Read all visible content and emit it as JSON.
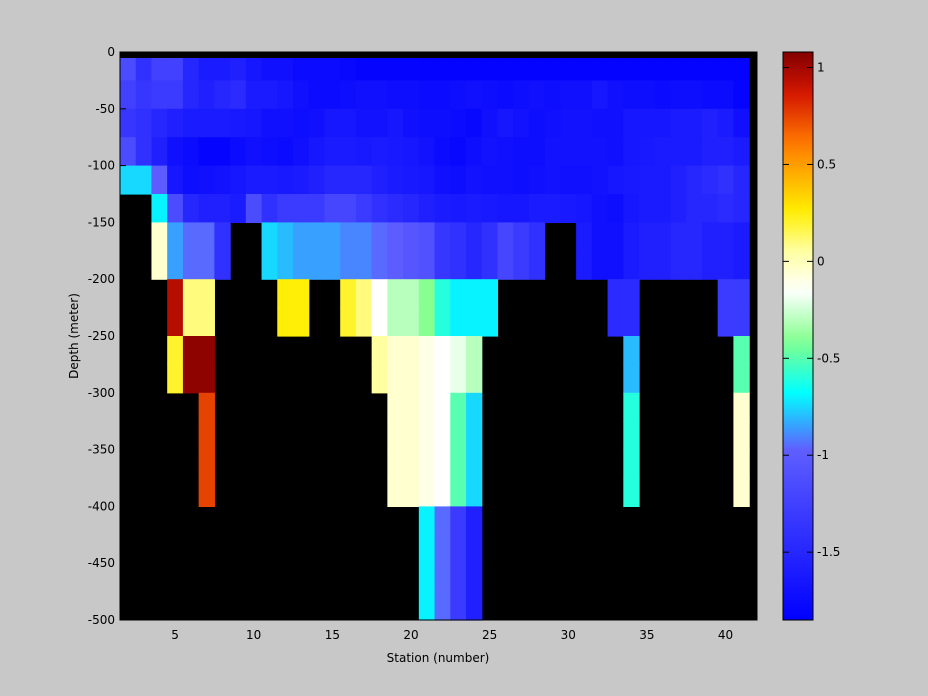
{
  "chart_data": {
    "type": "heatmap",
    "title": "",
    "xlabel": "Station (number)",
    "ylabel": "Depth (meter)",
    "xlim": [
      1.5,
      42
    ],
    "ylim": [
      -500,
      0
    ],
    "xticks": [
      5,
      10,
      15,
      20,
      25,
      30,
      35,
      40
    ],
    "yticks": [
      0,
      -50,
      -100,
      -150,
      -200,
      -250,
      -300,
      -350,
      -400,
      -450,
      -500
    ],
    "x": [
      2,
      3,
      4,
      5,
      6,
      7,
      8,
      9,
      10,
      11,
      12,
      13,
      14,
      15,
      16,
      17,
      18,
      19,
      20,
      21,
      22,
      23,
      24,
      25,
      26,
      27,
      28,
      29,
      30,
      31,
      32,
      33,
      34,
      35,
      36,
      37,
      38,
      39,
      40,
      41
    ],
    "depths": [
      0,
      -25,
      -50,
      -75,
      -100,
      -125,
      -150,
      -175,
      -200,
      -225,
      -250,
      -275,
      -300,
      -325,
      -350,
      -375,
      -400,
      -425,
      -450,
      -475,
      -500
    ],
    "no_data_color": "#000000",
    "colorbar": {
      "min": -1.85,
      "max": 1.08,
      "ticks": [
        1,
        0.5,
        0,
        -0.5,
        -1,
        -1.5
      ],
      "colormap": "jet-with-white-centre"
    },
    "values": [
      [
        -1.15,
        -1.4,
        -1.25,
        -1.25,
        -1.5,
        -1.6,
        -1.6,
        -1.55,
        -1.65,
        -1.7,
        -1.7,
        -1.75,
        -1.75,
        -1.75,
        -1.78,
        -1.8,
        -1.8,
        -1.8,
        -1.8,
        -1.82,
        -1.82,
        -1.82,
        -1.82,
        -1.82,
        -1.82,
        -1.82,
        -1.82,
        -1.82,
        -1.82,
        -1.82,
        -1.82,
        -1.82,
        -1.82,
        -1.82,
        -1.82,
        -1.82,
        -1.82,
        -1.82,
        -1.82,
        -1.82
      ],
      [
        -1.25,
        -1.35,
        -1.3,
        -1.3,
        -1.5,
        -1.55,
        -1.5,
        -1.45,
        -1.6,
        -1.6,
        -1.65,
        -1.7,
        -1.75,
        -1.75,
        -1.72,
        -1.7,
        -1.7,
        -1.72,
        -1.72,
        -1.75,
        -1.75,
        -1.72,
        -1.7,
        -1.72,
        -1.75,
        -1.72,
        -1.7,
        -1.72,
        -1.7,
        -1.7,
        -1.65,
        -1.7,
        -1.72,
        -1.72,
        -1.75,
        -1.72,
        -1.72,
        -1.75,
        -1.75,
        -1.8
      ],
      [
        -1.35,
        -1.4,
        -1.5,
        -1.55,
        -1.6,
        -1.6,
        -1.6,
        -1.62,
        -1.65,
        -1.7,
        -1.7,
        -1.72,
        -1.7,
        -1.65,
        -1.65,
        -1.68,
        -1.68,
        -1.65,
        -1.7,
        -1.72,
        -1.72,
        -1.75,
        -1.78,
        -1.7,
        -1.65,
        -1.68,
        -1.72,
        -1.7,
        -1.68,
        -1.68,
        -1.7,
        -1.7,
        -1.65,
        -1.65,
        -1.65,
        -1.6,
        -1.6,
        -1.55,
        -1.6,
        -1.7
      ],
      [
        -1.15,
        -1.4,
        -1.55,
        -1.7,
        -1.75,
        -1.8,
        -1.8,
        -1.75,
        -1.7,
        -1.72,
        -1.75,
        -1.7,
        -1.65,
        -1.6,
        -1.6,
        -1.62,
        -1.6,
        -1.62,
        -1.65,
        -1.68,
        -1.75,
        -1.78,
        -1.72,
        -1.68,
        -1.7,
        -1.72,
        -1.72,
        -1.68,
        -1.68,
        -1.68,
        -1.68,
        -1.7,
        -1.65,
        -1.62,
        -1.6,
        -1.6,
        -1.6,
        -1.55,
        -1.55,
        -1.6
      ],
      [
        -0.75,
        -0.75,
        -1.0,
        -1.65,
        -1.72,
        -1.7,
        -1.68,
        -1.65,
        -1.6,
        -1.6,
        -1.62,
        -1.6,
        -1.55,
        -1.5,
        -1.5,
        -1.5,
        -1.55,
        -1.6,
        -1.62,
        -1.65,
        -1.7,
        -1.72,
        -1.68,
        -1.7,
        -1.7,
        -1.72,
        -1.7,
        -1.68,
        -1.7,
        -1.7,
        -1.68,
        -1.65,
        -1.62,
        -1.6,
        -1.6,
        -1.55,
        -1.5,
        -1.45,
        -1.4,
        -1.5
      ],
      [
        null,
        null,
        -0.7,
        -1.15,
        -1.5,
        -1.55,
        -1.55,
        -1.6,
        -1.15,
        -1.4,
        -1.3,
        -1.3,
        -1.3,
        -1.2,
        -1.2,
        -1.3,
        -1.4,
        -1.45,
        -1.5,
        -1.55,
        -1.6,
        -1.62,
        -1.6,
        -1.62,
        -1.65,
        -1.65,
        -1.6,
        -1.6,
        -1.62,
        -1.65,
        -1.7,
        -1.72,
        -1.65,
        -1.6,
        -1.6,
        -1.55,
        -1.5,
        -1.5,
        -1.45,
        -1.5
      ],
      [
        null,
        null,
        -0.05,
        -0.85,
        -0.95,
        -0.95,
        -1.4,
        null,
        null,
        -0.75,
        -0.8,
        -0.85,
        -0.85,
        -0.85,
        -0.9,
        -0.9,
        -0.95,
        -1.0,
        -1.05,
        -1.1,
        -1.35,
        -1.4,
        -1.5,
        -1.4,
        -1.2,
        -1.3,
        -1.4,
        null,
        null,
        -1.6,
        -1.7,
        -1.7,
        -1.6,
        -1.55,
        -1.55,
        -1.5,
        -1.5,
        -1.55,
        -1.55,
        -1.6
      ],
      [
        null,
        null,
        -0.05,
        -0.85,
        -0.95,
        -0.95,
        -1.4,
        null,
        null,
        -0.75,
        -0.8,
        -0.85,
        -0.85,
        -0.85,
        -0.9,
        -0.9,
        -0.95,
        -1.0,
        -1.05,
        -1.1,
        -1.35,
        -1.4,
        -1.5,
        -1.4,
        -1.2,
        -1.3,
        -1.4,
        null,
        null,
        -1.6,
        -1.7,
        -1.7,
        -1.6,
        -1.55,
        -1.55,
        -1.5,
        -1.5,
        -1.55,
        -1.55,
        -1.6
      ],
      [
        null,
        null,
        null,
        0.95,
        0.1,
        0.1,
        null,
        null,
        null,
        null,
        0.25,
        0.25,
        null,
        null,
        0.2,
        0.1,
        -0.15,
        -0.3,
        -0.3,
        -0.4,
        -0.6,
        -0.7,
        -0.7,
        -0.7,
        null,
        null,
        null,
        null,
        null,
        null,
        null,
        -1.45,
        -1.45,
        null,
        null,
        null,
        null,
        null,
        -1.3,
        -1.3
      ],
      [
        null,
        null,
        null,
        0.95,
        0.1,
        0.1,
        null,
        null,
        null,
        null,
        0.25,
        0.25,
        null,
        null,
        0.2,
        0.1,
        -0.15,
        -0.3,
        -0.3,
        -0.4,
        -0.6,
        -0.7,
        -0.7,
        -0.7,
        null,
        null,
        null,
        null,
        null,
        null,
        null,
        -1.45,
        -1.45,
        null,
        null,
        null,
        null,
        null,
        -1.3,
        -1.3
      ],
      [
        null,
        null,
        null,
        0.2,
        1.05,
        1.05,
        null,
        null,
        null,
        null,
        null,
        null,
        null,
        null,
        null,
        null,
        0.05,
        -0.05,
        -0.05,
        -0.1,
        -0.15,
        -0.2,
        -0.3,
        null,
        null,
        null,
        null,
        null,
        null,
        null,
        null,
        null,
        -0.8,
        null,
        null,
        null,
        null,
        null,
        null,
        -0.5
      ],
      [
        null,
        null,
        null,
        0.2,
        1.05,
        1.05,
        null,
        null,
        null,
        null,
        null,
        null,
        null,
        null,
        null,
        null,
        0.05,
        -0.05,
        -0.05,
        -0.1,
        -0.15,
        -0.2,
        -0.3,
        null,
        null,
        null,
        null,
        null,
        null,
        null,
        null,
        null,
        -0.8,
        null,
        null,
        null,
        null,
        null,
        null,
        -0.5
      ],
      [
        null,
        null,
        null,
        null,
        null,
        0.75,
        null,
        null,
        null,
        null,
        null,
        null,
        null,
        null,
        null,
        null,
        null,
        -0.05,
        -0.05,
        -0.1,
        -0.15,
        -0.5,
        -0.75,
        null,
        null,
        null,
        null,
        null,
        null,
        null,
        null,
        null,
        -0.6,
        null,
        null,
        null,
        null,
        null,
        null,
        -0.05
      ],
      [
        null,
        null,
        null,
        null,
        null,
        0.75,
        null,
        null,
        null,
        null,
        null,
        null,
        null,
        null,
        null,
        null,
        null,
        -0.05,
        -0.05,
        -0.1,
        -0.15,
        -0.5,
        -0.75,
        null,
        null,
        null,
        null,
        null,
        null,
        null,
        null,
        null,
        -0.6,
        null,
        null,
        null,
        null,
        null,
        null,
        -0.05
      ],
      [
        null,
        null,
        null,
        null,
        null,
        0.75,
        null,
        null,
        null,
        null,
        null,
        null,
        null,
        null,
        null,
        null,
        null,
        -0.05,
        -0.05,
        -0.1,
        -0.15,
        -0.5,
        -0.75,
        null,
        null,
        null,
        null,
        null,
        null,
        null,
        null,
        null,
        -0.6,
        null,
        null,
        null,
        null,
        null,
        null,
        -0.05
      ],
      [
        null,
        null,
        null,
        null,
        null,
        0.75,
        null,
        null,
        null,
        null,
        null,
        null,
        null,
        null,
        null,
        null,
        null,
        -0.05,
        -0.05,
        -0.1,
        -0.15,
        -0.5,
        -0.75,
        null,
        null,
        null,
        null,
        null,
        null,
        null,
        null,
        null,
        -0.6,
        null,
        null,
        null,
        null,
        null,
        null,
        -0.05
      ],
      [
        null,
        null,
        null,
        null,
        null,
        null,
        null,
        null,
        null,
        null,
        null,
        null,
        null,
        null,
        null,
        null,
        null,
        null,
        null,
        -0.7,
        -0.95,
        -1.3,
        -1.55,
        null,
        null,
        null,
        null,
        null,
        null,
        null,
        null,
        null,
        null,
        null,
        null,
        null,
        null,
        null,
        null,
        null
      ],
      [
        null,
        null,
        null,
        null,
        null,
        null,
        null,
        null,
        null,
        null,
        null,
        null,
        null,
        null,
        null,
        null,
        null,
        null,
        null,
        -0.7,
        -0.95,
        -1.3,
        -1.55,
        null,
        null,
        null,
        null,
        null,
        null,
        null,
        null,
        null,
        null,
        null,
        null,
        null,
        null,
        null,
        null,
        null
      ],
      [
        null,
        null,
        null,
        null,
        null,
        null,
        null,
        null,
        null,
        null,
        null,
        null,
        null,
        null,
        null,
        null,
        null,
        null,
        null,
        -0.7,
        -0.95,
        -1.3,
        -1.55,
        null,
        null,
        null,
        null,
        null,
        null,
        null,
        null,
        null,
        null,
        null,
        null,
        null,
        null,
        null,
        null,
        null
      ],
      [
        null,
        null,
        null,
        null,
        null,
        null,
        null,
        null,
        null,
        null,
        null,
        null,
        null,
        null,
        null,
        null,
        null,
        null,
        null,
        -0.7,
        -0.95,
        -1.3,
        -1.55,
        null,
        null,
        null,
        null,
        null,
        null,
        null,
        null,
        null,
        null,
        null,
        null,
        null,
        null,
        null,
        null,
        null
      ]
    ]
  }
}
